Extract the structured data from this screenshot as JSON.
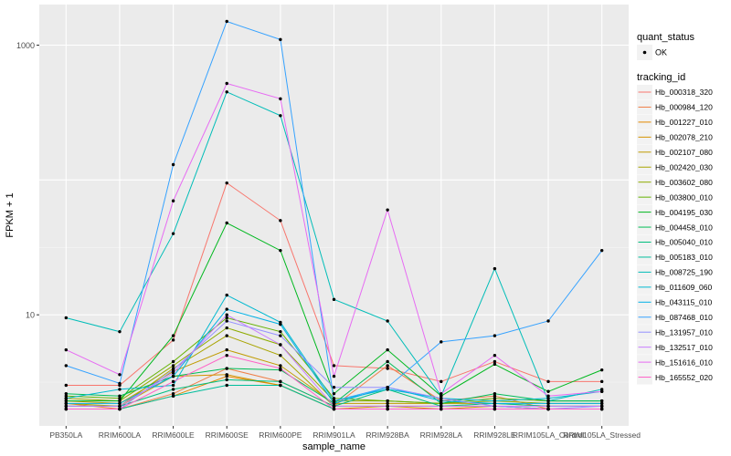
{
  "chart_data": {
    "type": "line",
    "title": "",
    "xlabel": "sample_name",
    "ylabel": "FPKM + 1",
    "y_scale": "log10",
    "ylim": [
      1.5,
      2000
    ],
    "grid": true,
    "legend_position": "right",
    "categories": [
      "PB350LA",
      "RRIM600LA",
      "RRIM600LE",
      "RRIM600SE",
      "RRIM600PE",
      "RRIM901LA",
      "RRIM928BA",
      "RRIM928LA",
      "RRIM928LE",
      "RRIM105LA_Control",
      "RRIM105LA_Stressed"
    ],
    "y_ticks": [
      {
        "value": 10,
        "label": "10"
      },
      {
        "value": 1000,
        "label": "1000"
      }
    ],
    "legend_quant": {
      "title": "quant_status",
      "items": [
        "OK"
      ]
    },
    "legend_title": "tracking_id",
    "series": [
      {
        "name": "Hb_000318_320",
        "color": "#F8766D",
        "values": [
          3.0,
          3.0,
          6.5,
          95,
          50,
          4.2,
          4.0,
          3.2,
          4.5,
          3.2,
          3.2
        ]
      },
      {
        "name": "Hb_000984_120",
        "color": "#EF7F48",
        "values": [
          2.2,
          2.0,
          2.6,
          4.0,
          3.2,
          2.1,
          4.2,
          2.3,
          2.5,
          2.0,
          2.0
        ]
      },
      {
        "name": "Hb_001227_010",
        "color": "#E38900",
        "values": [
          2.0,
          2.0,
          2.5,
          3.5,
          3.0,
          2.0,
          2.0,
          2.0,
          2.0,
          2.0,
          2.0
        ]
      },
      {
        "name": "Hb_002078_210",
        "color": "#D39200",
        "values": [
          2.1,
          2.1,
          3.5,
          3.6,
          3.0,
          2.0,
          2.1,
          2.0,
          2.1,
          2.0,
          2.0
        ]
      },
      {
        "name": "Hb_002107_080",
        "color": "#C09B00",
        "values": [
          2.3,
          2.2,
          3.8,
          5.5,
          4.2,
          2.2,
          2.2,
          2.2,
          2.2,
          2.1,
          2.1
        ]
      },
      {
        "name": "Hb_002420_030",
        "color": "#A8A400",
        "values": [
          2.2,
          2.1,
          4.0,
          7.0,
          5.0,
          2.1,
          2.1,
          2.1,
          2.1,
          2.0,
          2.0
        ]
      },
      {
        "name": "Hb_003602_080",
        "color": "#8EAB00",
        "values": [
          2.4,
          2.3,
          4.2,
          8.0,
          6.0,
          2.3,
          2.3,
          2.2,
          2.3,
          2.2,
          2.2
        ]
      },
      {
        "name": "Hb_003800_010",
        "color": "#64B200",
        "values": [
          2.5,
          2.4,
          4.5,
          9.5,
          7.5,
          2.4,
          2.3,
          2.2,
          2.4,
          2.3,
          2.3
        ]
      },
      {
        "name": "Hb_004195_030",
        "color": "#00B81F",
        "values": [
          2.3,
          2.3,
          7.0,
          48,
          30,
          2.6,
          5.5,
          2.5,
          4.3,
          2.7,
          3.9
        ]
      },
      {
        "name": "Hb_004458_010",
        "color": "#00BC56",
        "values": [
          2.6,
          2.5,
          3.5,
          4.0,
          3.9,
          2.2,
          4.5,
          2.2,
          2.6,
          2.3,
          2.3
        ]
      },
      {
        "name": "Hb_005040_010",
        "color": "#00BE7D",
        "values": [
          2.1,
          2.1,
          2.8,
          3.3,
          3.2,
          2.1,
          2.8,
          2.1,
          2.2,
          2.1,
          2.1
        ]
      },
      {
        "name": "Hb_005183_010",
        "color": "#00BE9C",
        "values": [
          2.0,
          2.0,
          2.5,
          3.0,
          3.0,
          2.0,
          2.0,
          2.0,
          2.0,
          2.0,
          2.0
        ]
      },
      {
        "name": "Hb_008725_190",
        "color": "#00BDB8",
        "values": [
          9.5,
          7.5,
          40,
          450,
          300,
          13,
          9.0,
          2.5,
          22,
          2.3,
          2.8
        ]
      },
      {
        "name": "Hb_011609_060",
        "color": "#00B9D0",
        "values": [
          2.4,
          2.8,
          3.0,
          14,
          8.8,
          2.3,
          2.8,
          2.4,
          2.3,
          2.4,
          2.7
        ]
      },
      {
        "name": "Hb_043115_010",
        "color": "#00B1E6",
        "values": [
          2.2,
          2.2,
          3.5,
          11,
          8.5,
          2.2,
          2.9,
          2.3,
          2.2,
          2.2,
          2.2
        ]
      },
      {
        "name": "Hb_087468_010",
        "color": "#35A2FF",
        "values": [
          4.2,
          3.1,
          130,
          1500,
          1100,
          2.3,
          2.9,
          6.3,
          7.0,
          9.0,
          30
        ]
      },
      {
        "name": "Hb_131957_010",
        "color": "#9590FF",
        "values": [
          2.0,
          2.0,
          3.9,
          9.0,
          7.0,
          2.9,
          2.9,
          2.4,
          2.1,
          2.0,
          2.1
        ]
      },
      {
        "name": "Hb_132517_010",
        "color": "#C77CFF",
        "values": [
          2.1,
          2.1,
          3.7,
          10,
          6.0,
          2.1,
          2.1,
          2.1,
          2.1,
          2.1,
          2.1
        ]
      },
      {
        "name": "Hb_151616_010",
        "color": "#E76BF3",
        "values": [
          5.5,
          3.6,
          70,
          520,
          400,
          3.5,
          60,
          2.6,
          5.0,
          2.5,
          2.7
        ]
      },
      {
        "name": "Hb_165552_020",
        "color": "#FF61C6",
        "values": [
          2.0,
          2.0,
          3.2,
          5.0,
          4.0,
          2.0,
          2.0,
          2.0,
          2.0,
          2.0,
          2.0
        ]
      }
    ]
  }
}
